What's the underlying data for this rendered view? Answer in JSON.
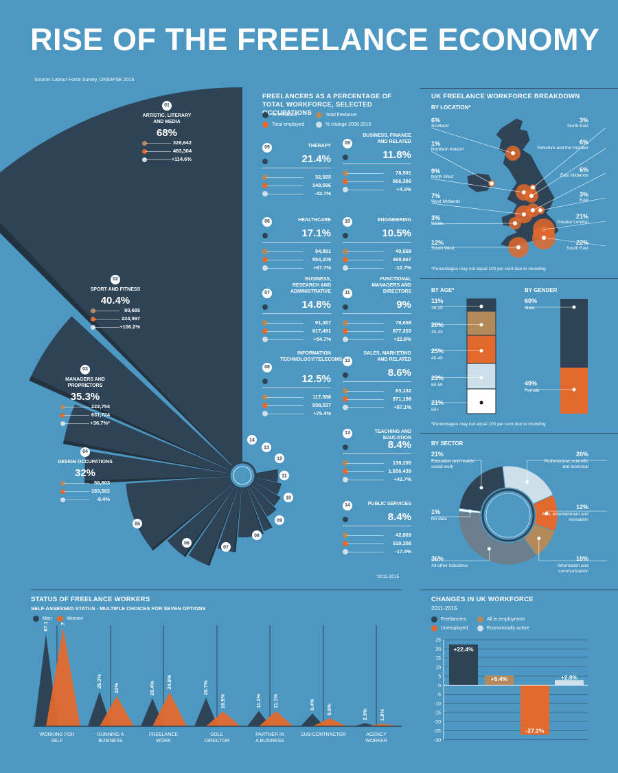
{
  "title": "RISE OF THE FREELANCE ECONOMY",
  "source": "Source: Labour Force Survey, ONS/IPSE 2015",
  "colors": {
    "background": "#4d98c2",
    "navy": "#2e4456",
    "tan": "#b58a5a",
    "orange": "#e2692d",
    "lightblue": "#cde0ea",
    "gray": "#6c7f8c"
  },
  "fan": {
    "items": [
      {
        "num": "01",
        "name": "ARTISTIC, LITERARY AND MEDIA",
        "pct": "68%",
        "freelance": "328,642",
        "employed": "483,304",
        "change": "+114.6%"
      },
      {
        "num": "02",
        "name": "SPORT AND FITNESS",
        "pct": "40.4%",
        "freelance": "90,685",
        "employed": "224,597",
        "change": "+106.2%"
      },
      {
        "num": "03",
        "name": "MANAGERS AND PROPRIETORS",
        "pct": "35.3%",
        "freelance": "222,754",
        "employed": "631,724",
        "change": "+36.7%*"
      },
      {
        "num": "04",
        "name": "DESIGN OCCUPATIONS",
        "pct": "32%",
        "freelance": "58,803",
        "employed": "183,562",
        "change": "-8.4%"
      }
    ],
    "small_labels": [
      "05",
      "06",
      "07",
      "08",
      "09",
      "10",
      "11",
      "12",
      "13",
      "14"
    ]
  },
  "occupations": {
    "title": "FREELANCERS AS A PERCENTAGE OF TOTAL WORKFORCE, SELECTED OCCUPATIONS",
    "legend": [
      "% freelance",
      "Total freelance",
      "Total employed",
      "% change 2008-2015"
    ],
    "items": [
      {
        "num": "05",
        "name": "THERAPY",
        "pct": "21.4%",
        "freelance": "32,025",
        "employed": "149,586",
        "change": "-42.7%"
      },
      {
        "num": "09",
        "name": "BUSINESS, FINANCE AND RELATED",
        "pct": "11.8%",
        "freelance": "78,591",
        "employed": "666,366",
        "change": "+4.3%"
      },
      {
        "num": "06",
        "name": "HEALTHCARE",
        "pct": "17.1%",
        "freelance": "94,851",
        "employed": "554,209",
        "change": "+67.7%"
      },
      {
        "num": "10",
        "name": "ENGINEERING",
        "pct": "10.5%",
        "freelance": "49,568",
        "employed": "469,867",
        "change": "-12.7%"
      },
      {
        "num": "07",
        "name": "BUSINESS, RESEARCH AND ADMINISTRATIVE",
        "pct": "14.8%",
        "freelance": "91,367",
        "employed": "617,491",
        "change": "+54.7%"
      },
      {
        "num": "11",
        "name": "FUNCTIONAL MANAGERS AND DIRECTORS",
        "pct": "9%",
        "freelance": "78,658",
        "employed": "877,203",
        "change": "+22.8%"
      },
      {
        "num": "08",
        "name": "INFORMATION TECHNOLOGY/TELECOMS",
        "pct": "12.5%",
        "freelance": "117,388",
        "employed": "938,537",
        "change": "+75.4%"
      },
      {
        "num": "12",
        "name": "SALES, MARKETING AND RELATED",
        "pct": "8.6%",
        "freelance": "83,132",
        "employed": "971,198",
        "change": "+87.1%"
      },
      {
        "num": "13",
        "name": "TEACHING AND EDUCATION",
        "pct": "8.4%",
        "freelance": "139,295",
        "employed": "1,656,439",
        "change": "+42.7%"
      },
      {
        "num": "14",
        "name": "PUBLIC SERVICES",
        "pct": "8.4%",
        "freelance": "42,869",
        "employed": "510,358",
        "change": "-17.4%"
      }
    ],
    "footnote": "*2011-2015"
  },
  "uk": {
    "title": "UK FREELANCE WORKFORCE BREAKDOWN",
    "location_title": "BY LOCATION*",
    "regions": [
      {
        "pct": "6%",
        "name": "Scotland"
      },
      {
        "pct": "1%",
        "name": "Northern Ireland"
      },
      {
        "pct": "9%",
        "name": "North West"
      },
      {
        "pct": "7%",
        "name": "West Midlands"
      },
      {
        "pct": "3%",
        "name": "Wales"
      },
      {
        "pct": "12%",
        "name": "South West"
      },
      {
        "pct": "3%",
        "name": "North East"
      },
      {
        "pct": "6%",
        "name": "Yorkshire and the Humber"
      },
      {
        "pct": "6%",
        "name": "East Midlands"
      },
      {
        "pct": "3%",
        "name": "East"
      },
      {
        "pct": "21%",
        "name": "Greater London"
      },
      {
        "pct": "22%",
        "name": "South East"
      }
    ],
    "location_note": "*Percentages may not equal 100 per cent due to rounding",
    "age_title": "BY AGE*",
    "ages": [
      {
        "pct": "11%",
        "label": "16-29"
      },
      {
        "pct": "20%",
        "label": "30-39"
      },
      {
        "pct": "25%",
        "label": "40-49"
      },
      {
        "pct": "23%",
        "label": "50-59"
      },
      {
        "pct": "21%",
        "label": "60+"
      }
    ],
    "gender_title": "BY GENDER",
    "genders": [
      {
        "pct": "60%",
        "label": "Male"
      },
      {
        "pct": "40%",
        "label": "Female"
      }
    ],
    "age_note": "*Percentages may not equal 100 per cent due to rounding",
    "sector_title": "BY SECTOR",
    "sectors": [
      {
        "pct": "21%",
        "label": "Education and health/ social work",
        "value": 21
      },
      {
        "pct": "20%",
        "label": "Professional, scientific and technical",
        "value": 20
      },
      {
        "pct": "12%",
        "label": "Arts, entertainment and recreation",
        "value": 12
      },
      {
        "pct": "10%",
        "label": "Information and communication",
        "value": 10
      },
      {
        "pct": "36%",
        "label": "All other industries",
        "value": 36
      },
      {
        "pct": "1%",
        "label": "No data",
        "value": 1
      }
    ]
  },
  "status": {
    "title": "STATUS OF FREELANCE WORKERS",
    "subtitle": "SELF-ASSESSED STATUS - MULTIPLE CHOICES FOR SEVEN OPTIONS",
    "legend": [
      "Men",
      "Women"
    ]
  },
  "changes": {
    "title": "CHANGES IN UK WORKFORCE",
    "subtitle": "2011-2015",
    "legend": [
      "Freelancers",
      "All in employment",
      "Unemployed",
      "Economically active"
    ]
  },
  "chart_data": [
    {
      "type": "bar",
      "title": "STATUS OF FREELANCE WORKERS",
      "subtitle": "SELF-ASSESSED STATUS - MULTIPLE CHOICES FOR SEVEN OPTIONS",
      "categories": [
        "WORKING FOR SELF",
        "RUNNING A BUSINESS",
        "FREELANCE WORK",
        "SOLE DIRECTOR",
        "PARTNER IN A BUSINESS",
        "SUB-CONTRACTOR",
        "AGENCY WORKER"
      ],
      "series": [
        {
          "name": "Men",
          "values": [
            67.1,
            25.3,
            20.4,
            20.7,
            11.2,
            9.4,
            2.3
          ],
          "labels": [
            "67.1%",
            "25.3%",
            "20.4%",
            "20.7%",
            "11.2%",
            "9.4%",
            "2.3%"
          ]
        },
        {
          "name": "Women",
          "values": [
            71.5,
            22,
            24.8,
            10.9,
            11.1,
            5.9,
            1.9
          ],
          "labels": [
            "71.5%",
            "22%",
            "24.8%",
            "10.9%",
            "11.1%",
            "5.9%",
            "1.9%"
          ]
        }
      ],
      "ylim": [
        0,
        80
      ]
    },
    {
      "type": "bar",
      "title": "CHANGES IN UK WORKFORCE",
      "subtitle": "2011-2015",
      "categories": [
        "Freelancers",
        "All in employment",
        "Unemployed",
        "Economically active"
      ],
      "values": [
        22.4,
        5.4,
        -27.2,
        2.8
      ],
      "labels": [
        "+22.4%",
        "+5.4%",
        "-27.2%",
        "+2.8%"
      ],
      "ylim": [
        -30,
        25
      ],
      "yticks": [
        25,
        20,
        15,
        10,
        5,
        0,
        -5,
        -10,
        -15,
        -20,
        -25,
        -30
      ],
      "grid": true
    }
  ]
}
